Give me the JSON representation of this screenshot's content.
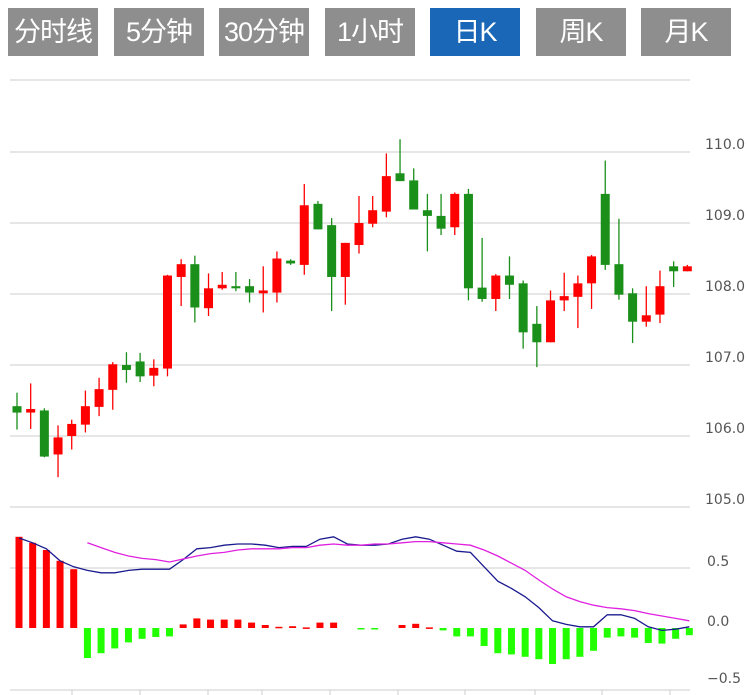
{
  "tabs": [
    {
      "label": "分时线",
      "active": false
    },
    {
      "label": "5分钟",
      "active": false
    },
    {
      "label": "30分钟",
      "active": false
    },
    {
      "label": "1小时",
      "active": false
    },
    {
      "label": "日K",
      "active": true
    },
    {
      "label": "周K",
      "active": false
    },
    {
      "label": "月K",
      "active": false
    }
  ],
  "colors": {
    "up": "#ff0000",
    "down": "#1a8f1a",
    "hist_up": "#ff0000",
    "hist_down": "#22ff00",
    "dif": "#1a1a8f",
    "dea": "#e020e0",
    "tab_active": "#1a67b8",
    "tab": "#8e8e8e"
  },
  "chart_data": [
    {
      "type": "candlestick",
      "title": "",
      "ylim": [
        105.0,
        110.0
      ],
      "yticks": [
        "110.0",
        "109.0",
        "108.0",
        "107.0",
        "106.0",
        "105.0"
      ],
      "ytick_values": [
        110,
        109,
        108,
        107,
        106,
        105
      ],
      "grid": true,
      "ohlc": [
        [
          106.42,
          106.61,
          106.09,
          106.33
        ],
        [
          106.33,
          106.74,
          106.1,
          106.38
        ],
        [
          106.36,
          106.39,
          105.7,
          105.71
        ],
        [
          105.74,
          106.15,
          105.42,
          105.98
        ],
        [
          106.0,
          106.23,
          105.81,
          106.17
        ],
        [
          106.16,
          106.64,
          106.05,
          106.42
        ],
        [
          106.41,
          106.82,
          106.28,
          106.66
        ],
        [
          106.65,
          107.04,
          106.37,
          107.01
        ],
        [
          107.0,
          107.18,
          106.75,
          106.93
        ],
        [
          107.05,
          107.17,
          106.76,
          106.84
        ],
        [
          106.85,
          107.08,
          106.7,
          106.96
        ],
        [
          106.95,
          108.27,
          106.84,
          108.26
        ],
        [
          108.24,
          108.49,
          107.83,
          108.42
        ],
        [
          108.42,
          108.54,
          107.6,
          107.81
        ],
        [
          107.8,
          108.29,
          107.69,
          108.08
        ],
        [
          108.08,
          108.31,
          108.06,
          108.13
        ],
        [
          108.11,
          108.31,
          108.04,
          108.08
        ],
        [
          108.11,
          108.21,
          107.88,
          108.02
        ],
        [
          108.01,
          108.39,
          107.74,
          108.05
        ],
        [
          108.02,
          108.6,
          107.88,
          108.5
        ],
        [
          108.47,
          108.49,
          108.41,
          108.43
        ],
        [
          108.41,
          109.55,
          108.27,
          109.25
        ],
        [
          109.27,
          109.31,
          108.91,
          108.91
        ],
        [
          108.97,
          109.07,
          107.76,
          108.24
        ],
        [
          108.24,
          108.72,
          107.85,
          108.72
        ],
        [
          108.69,
          109.38,
          108.57,
          109.0
        ],
        [
          108.99,
          109.38,
          108.94,
          109.18
        ],
        [
          109.16,
          109.98,
          109.08,
          109.66
        ],
        [
          109.7,
          110.18,
          109.59,
          109.59
        ],
        [
          109.6,
          109.77,
          109.19,
          109.19
        ],
        [
          109.18,
          109.41,
          108.6,
          109.1
        ],
        [
          109.1,
          109.41,
          108.83,
          108.92
        ],
        [
          108.94,
          109.43,
          108.83,
          109.41
        ],
        [
          109.41,
          109.48,
          107.91,
          108.08
        ],
        [
          108.09,
          108.79,
          107.89,
          107.93
        ],
        [
          107.93,
          108.28,
          107.76,
          108.26
        ],
        [
          108.26,
          108.53,
          107.93,
          108.13
        ],
        [
          108.15,
          108.19,
          107.23,
          107.46
        ],
        [
          107.58,
          107.83,
          106.97,
          107.32
        ],
        [
          107.32,
          108.05,
          107.32,
          107.91
        ],
        [
          107.91,
          108.3,
          107.76,
          107.97
        ],
        [
          107.96,
          108.26,
          107.52,
          108.15
        ],
        [
          108.15,
          108.55,
          107.79,
          108.53
        ],
        [
          109.41,
          109.88,
          108.34,
          108.41
        ],
        [
          108.42,
          109.06,
          107.92,
          107.99
        ],
        [
          108.01,
          108.08,
          107.31,
          107.61
        ],
        [
          107.61,
          108.11,
          107.54,
          107.7
        ],
        [
          107.71,
          108.33,
          107.59,
          108.11
        ],
        [
          108.39,
          108.46,
          108.1,
          108.32
        ],
        [
          108.32,
          108.41,
          108.32,
          108.39
        ]
      ]
    },
    {
      "type": "bar+line",
      "title": "MACD",
      "ylim": [
        -0.5,
        0.8
      ],
      "yticks": [
        "0.5",
        "0.0",
        "−0.5"
      ],
      "ytick_values": [
        0.5,
        0.0,
        -0.5
      ],
      "histogram": [
        0.76,
        0.71,
        0.65,
        0.56,
        0.49,
        -0.25,
        -0.21,
        -0.17,
        -0.12,
        -0.09,
        -0.075,
        -0.07,
        0.03,
        0.08,
        0.07,
        0.07,
        0.07,
        0.045,
        0.025,
        0.01,
        0.015,
        0.005,
        0.045,
        0.045,
        0,
        -0.01,
        -0.01,
        0,
        0.025,
        0.035,
        0.005,
        -0.02,
        -0.07,
        -0.07,
        -0.15,
        -0.21,
        -0.22,
        -0.24,
        -0.26,
        -0.3,
        -0.26,
        -0.24,
        -0.19,
        -0.08,
        -0.07,
        -0.08,
        -0.125,
        -0.13,
        -0.09,
        -0.06
      ],
      "series": [
        {
          "name": "DIF",
          "start_index": 0,
          "values": [
            0.75,
            0.71,
            0.66,
            0.56,
            0.51,
            0.48,
            0.46,
            0.46,
            0.48,
            0.49,
            0.49,
            0.49,
            0.57,
            0.66,
            0.67,
            0.69,
            0.7,
            0.7,
            0.69,
            0.67,
            0.68,
            0.68,
            0.74,
            0.76,
            0.7,
            0.69,
            0.69,
            0.7,
            0.74,
            0.76,
            0.74,
            0.69,
            0.64,
            0.63,
            0.51,
            0.39,
            0.33,
            0.26,
            0.17,
            0.06,
            0.03,
            0.01,
            0.01,
            0.11,
            0.11,
            0.08,
            0.01,
            -0.02,
            -0.01,
            0.01
          ]
        },
        {
          "name": "DEA",
          "start_index": 5,
          "values": [
            0.71,
            0.67,
            0.63,
            0.6,
            0.58,
            0.57,
            0.55,
            0.575,
            0.6,
            0.62,
            0.63,
            0.65,
            0.66,
            0.66,
            0.66,
            0.67,
            0.67,
            0.69,
            0.7,
            0.69,
            0.69,
            0.7,
            0.7,
            0.71,
            0.72,
            0.72,
            0.71,
            0.7,
            0.69,
            0.65,
            0.6,
            0.54,
            0.48,
            0.4,
            0.325,
            0.26,
            0.22,
            0.19,
            0.17,
            0.16,
            0.145,
            0.12,
            0.1,
            0.08,
            0.06
          ]
        }
      ]
    }
  ]
}
